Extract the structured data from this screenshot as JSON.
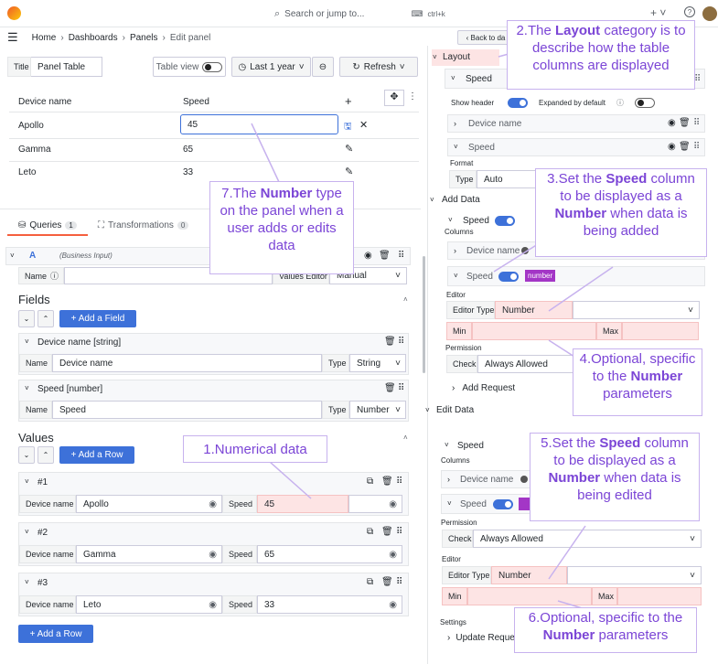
{
  "topbar": {
    "search_placeholder": "Search or jump to...",
    "shortcut": "ctrl+k",
    "plus": "+",
    "help": "?"
  },
  "breadcrumb": [
    "Home",
    "›",
    "Dashboards",
    "›",
    "Panels",
    "›",
    "Edit panel"
  ],
  "back_label": "‹ Back to da",
  "panel_toolbar": {
    "title_label": "Title",
    "title_value": "Panel Table",
    "table_view": "Table view",
    "time_range": "Last 1 year",
    "refresh": "Refresh"
  },
  "table": {
    "headers": [
      "Device name",
      "Speed",
      "+"
    ],
    "rows": [
      {
        "name": "Apollo",
        "speed": "45"
      },
      {
        "name": "Gamma",
        "speed": "65"
      },
      {
        "name": "Leto",
        "speed": "33"
      }
    ]
  },
  "query_tabs": {
    "queries": "Queries",
    "queries_count": "1",
    "transformations": "Transformations",
    "transformations_count": "0"
  },
  "query": {
    "letter": "A",
    "source": "(Business Input)",
    "name_label": "Name",
    "values_editor_label": "Values Editor",
    "values_editor": "Manual"
  },
  "fields": {
    "title": "Fields",
    "add_button": "+ Add a Field",
    "items": [
      {
        "header": "Device name [string]",
        "name_label": "Name",
        "name": "Device name",
        "type_label": "Type",
        "type": "String"
      },
      {
        "header": "Speed [number]",
        "name_label": "Name",
        "name": "Speed",
        "type_label": "Type",
        "type": "Number"
      }
    ]
  },
  "values": {
    "title": "Values",
    "add_button": "+ Add a Row",
    "rows": [
      {
        "header": "#1",
        "device_label": "Device name",
        "device": "Apollo",
        "speed_label": "Speed",
        "speed": "45"
      },
      {
        "header": "#2",
        "device_label": "Device name",
        "device": "Gamma",
        "speed_label": "Speed",
        "speed": "65"
      },
      {
        "header": "#3",
        "device_label": "Device name",
        "device": "Leto",
        "speed_label": "Speed",
        "speed": "33"
      }
    ],
    "bottom_button": "+ Add a Row"
  },
  "right": {
    "layout": "Layout",
    "speed": "Speed",
    "show_header": "Show header",
    "expanded_default": "Expanded by default",
    "device_name": "Device name",
    "format": "Format",
    "type_label": "Type",
    "type_value": "Auto",
    "add_data": "Add Data",
    "columns": "Columns",
    "number_badge": "number",
    "editor": "Editor",
    "editor_type": "Editor Type",
    "number": "Number",
    "min": "Min",
    "max": "Max",
    "permission": "Permission",
    "check": "Check",
    "always_allowed": "Always Allowed",
    "add_request": "Add Request",
    "edit_data": "Edit Data",
    "settings": "Settings",
    "update_request": "Update Reques"
  },
  "annotations": {
    "a1": "1.Numerical data",
    "a2_pre": "2.The ",
    "a2_bold": "Layout",
    "a2_post": " category is to describe how the table columns are displayed",
    "a3_pre": "3.Set the ",
    "a3_bold1": "Speed",
    "a3_mid": " column to be displayed as a ",
    "a3_bold2": "Number",
    "a3_post": " when data is being added",
    "a4_pre": "4.Optional, specific to the ",
    "a4_bold": "Number",
    "a4_post": " parameters",
    "a5_pre": "5.Set the ",
    "a5_bold1": "Speed",
    "a5_mid": " column to be displayed as a ",
    "a5_bold2": "Number",
    "a5_post": " when data is being edited",
    "a6_pre": "6.Optional, specific to the ",
    "a6_bold": "Number",
    "a6_post": " parameters",
    "a7_pre": "7.The ",
    "a7_bold": "Number",
    "a7_post": " type on the panel when a user adds or edits data"
  },
  "colors": {
    "accent": "#3d71d9",
    "annotation": "#7b45d6",
    "pink": "#fde4e4",
    "badge": "#a336c6"
  }
}
